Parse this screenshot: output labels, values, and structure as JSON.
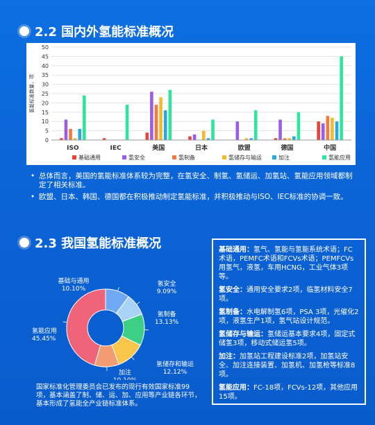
{
  "section1": {
    "title": "2.2 国内外氢能标准概况"
  },
  "section2": {
    "title": "2.3 我国氢能标准概况"
  },
  "bullets": [
    "总体而言，美国的氢能标准体系较为完整，在氢安全、制氢、氢储运、加氢站、氢能应用领域都制定了相关标准。",
    "欧盟、日本、韩国、德国都在积极推动制定氢能标准，并积极推动与ISO、IEC标准的协调一致。"
  ],
  "pie_description": "国家标准化管理委员会已发布的现行有效国家标准99项，基本涵盖了制、储、运、加、应用等产业链各环节，基本形成了氢能全产业链标准体系。",
  "details": [
    {
      "label": "基础通用：",
      "text": "氢气、氢能与氢能系统术语；FC术语，PEMFC术语和FCVs术语；PEMFCVs用氢气，液氢，车用HCNG，工业气体3项等。"
    },
    {
      "label": "氢安全：",
      "text": "通用安全要求2项，临氢材料安全7项。"
    },
    {
      "label": "氢制备：",
      "text": "水电解制氢6项，PSA 3项，光催化2项，液氢生产1项，氢气站设计规范。"
    },
    {
      "label": "氢储存与输运：",
      "text": "氢储运基本要求4项，固定式储氢3项，移动式储运氢5项。"
    },
    {
      "label": "加注：",
      "text": "加氢站工程建设标准2项，加氢站安全、加注连接装置、加氢机、加氢枪等标准8项。"
    },
    {
      "label": "氢能应用：",
      "text": "FC-18项，FCVs-12项，其他应用15项。"
    }
  ],
  "chart_data": [
    {
      "type": "bar",
      "ylabel": "氢能标准数量，项",
      "ylim": [
        0,
        50
      ],
      "yticks": [
        0,
        5,
        10,
        15,
        20,
        25,
        30,
        35,
        40,
        45,
        50
      ],
      "grid": true,
      "legend": "bottom",
      "categories": [
        "ISO",
        "IEC",
        "美国",
        "日本",
        "欧盟",
        "德国",
        "中国"
      ],
      "series": [
        {
          "name": "基础通用",
          "color": "#e8423b",
          "values": [
            1,
            1,
            4,
            2,
            0,
            1,
            10
          ]
        },
        {
          "name": "氢安全",
          "color": "#9b5de5",
          "values": [
            11,
            0,
            26,
            3,
            10,
            11,
            9
          ]
        },
        {
          "name": "氢制备",
          "color": "#f07b3f",
          "values": [
            6,
            0,
            19,
            0,
            0,
            1,
            13
          ]
        },
        {
          "name": "氢储存与输运",
          "color": "#f5b82e",
          "values": [
            1,
            0,
            23,
            5,
            1,
            1,
            12
          ]
        },
        {
          "name": "加注",
          "color": "#2aa8e0",
          "values": [
            6,
            0,
            16,
            1,
            1,
            2,
            10
          ]
        },
        {
          "name": "氢能应用",
          "color": "#2ee59d",
          "values": [
            24,
            19,
            27,
            11,
            16,
            15,
            45
          ]
        }
      ]
    },
    {
      "type": "pie",
      "donut": true,
      "slices": [
        {
          "name": "基础与通用",
          "value": 10.1,
          "label": "10.10%",
          "color": "#6fa8f5"
        },
        {
          "name": "氢安全",
          "value": 9.09,
          "label": "9.09%",
          "color": "#a9d2f7"
        },
        {
          "name": "氢制备",
          "value": 13.13,
          "label": "13.13%",
          "color": "#3ecf86"
        },
        {
          "name": "氢储存和输运",
          "value": 12.12,
          "label": "12.12%",
          "color": "#f7c64a"
        },
        {
          "name": "加注",
          "value": 10.1,
          "label": "10.10%",
          "color": "#f59b73"
        },
        {
          "name": "氢能应用",
          "value": 45.45,
          "label": "45.45%",
          "color": "#f0647a"
        }
      ]
    }
  ]
}
